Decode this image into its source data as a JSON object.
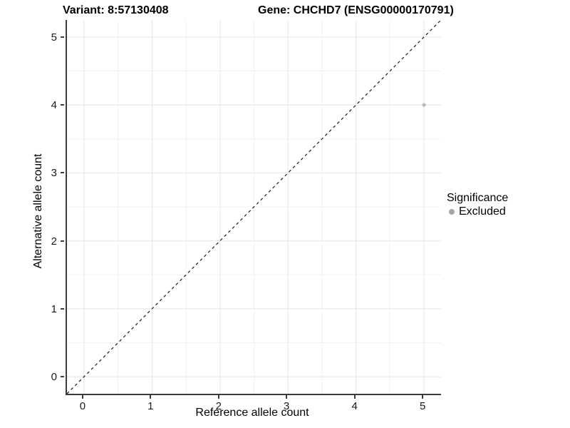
{
  "titles": {
    "variant": "Variant: 8:57130408",
    "gene": "Gene: CHCHD7 (ENSG00000170791)"
  },
  "chart_data": {
    "type": "scatter",
    "title_left": "Variant: 8:57130408",
    "title_right": "Gene: CHCHD7 (ENSG00000170791)",
    "xlabel": "Reference allele count",
    "ylabel": "Alternative allele count",
    "xlim": [
      -0.25,
      5.25
    ],
    "ylim": [
      -0.25,
      5.25
    ],
    "xticks": [
      0,
      1,
      2,
      3,
      4,
      5
    ],
    "yticks": [
      0,
      1,
      2,
      3,
      4,
      5
    ],
    "minor_ticks_x": [
      0.5,
      1.5,
      2.5,
      3.5,
      4.5
    ],
    "minor_ticks_y": [
      0.5,
      1.5,
      2.5,
      3.5,
      4.5
    ],
    "grid": "on",
    "points": [
      {
        "x": 5,
        "y": 4,
        "series": "Excluded"
      }
    ],
    "identity_line": {
      "type": "dashed",
      "from_xy": [
        -0.25,
        -0.25
      ],
      "to_xy": [
        5.25,
        5.25
      ]
    },
    "legend": {
      "position": "right",
      "title": "Significance",
      "items": [
        {
          "label": "Excluded",
          "color": "#a6a6a6"
        }
      ]
    },
    "colors": {
      "point": "#b9b9b9",
      "grid_major": "#e4e4e4",
      "grid_minor": "#f1f1f1",
      "dashed_line": "#1a1a1a",
      "axis_line": "#3c3c3c"
    }
  }
}
